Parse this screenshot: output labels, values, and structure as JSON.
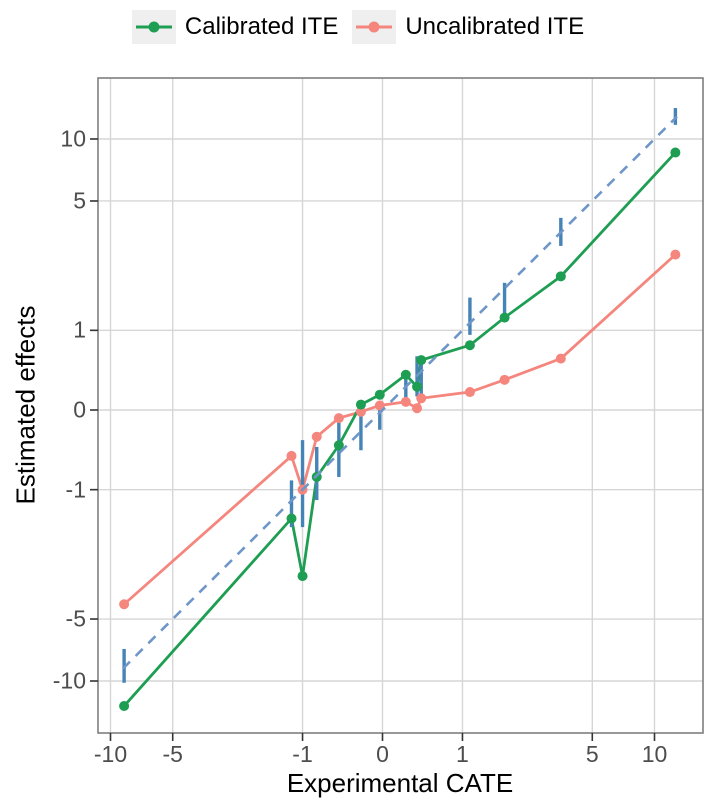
{
  "legend": {
    "items": [
      {
        "label": "Calibrated ITE",
        "color": "#1E9E52"
      },
      {
        "label": "Uncalibrated ITE",
        "color": "#F5867E"
      }
    ]
  },
  "chart_data": {
    "type": "line",
    "title": "",
    "xlabel": "Experimental CATE",
    "ylabel": "Estimated effects",
    "x_scale": "pseudo-log (asinh)",
    "y_scale": "pseudo-log (asinh)",
    "grid": "major-only",
    "legend_position": "top",
    "xlim": [
      -11.4,
      17.1
    ],
    "ylim": [
      -17.8,
      19.6
    ],
    "x_ticks": [
      -10,
      -5,
      -1,
      0,
      1,
      5,
      10
    ],
    "x_tick_labels": [
      "-10",
      "-5",
      "-1",
      "0",
      "1",
      "5",
      "10"
    ],
    "y_ticks": [
      10,
      5,
      1,
      0,
      -1,
      -5,
      -10
    ],
    "y_tick_labels": [
      "10",
      "5",
      "1",
      "0",
      "-1",
      "-5",
      "-10"
    ],
    "identity_line": {
      "style": "dashed",
      "color": "#6E96C8",
      "from": -8.72,
      "to": 12.82
    },
    "series": [
      {
        "name": "Calibrated ITE",
        "color": "#1E9E52",
        "x": [
          -8.6,
          -1.18,
          -1.0,
          -0.79,
          -0.5,
          -0.24,
          -0.03,
          0.26,
          0.39,
          0.44,
          1.12,
          1.79,
          3.5,
          12.6
        ],
        "y": [
          -13.2,
          -1.51,
          -3.06,
          -0.81,
          -0.4,
          0.06,
          0.17,
          0.4,
          0.26,
          0.58,
          0.78,
          1.21,
          2.08,
          8.6
        ]
      },
      {
        "name": "Uncalibrated ITE",
        "color": "#F5867E",
        "x": [
          -8.6,
          -1.18,
          -1.0,
          -0.79,
          -0.5,
          -0.24,
          -0.03,
          0.26,
          0.39,
          0.44,
          1.12,
          1.79,
          3.5,
          12.6
        ],
        "y": [
          -4.23,
          -0.53,
          -1.0,
          -0.3,
          -0.09,
          -0.02,
          0.05,
          0.09,
          0.02,
          0.13,
          0.2,
          0.34,
          0.6,
          2.7
        ]
      }
    ],
    "error_bars": {
      "color": "#4683B6",
      "x": [
        -8.6,
        -1.18,
        -1.0,
        -0.79,
        -0.5,
        -0.24,
        -0.03,
        0.26,
        0.39,
        0.44,
        1.12,
        1.79,
        3.5,
        12.6
      ],
      "low": [
        -10.2,
        -1.69,
        -1.69,
        -1.17,
        -0.81,
        -0.46,
        -0.22,
        0.11,
        0.15,
        0.15,
        0.93,
        1.25,
        2.99,
        11.7
      ],
      "high": [
        -7.0,
        -0.86,
        -0.34,
        -0.42,
        -0.14,
        -0.02,
        0.09,
        0.4,
        0.63,
        0.63,
        1.59,
        1.92,
        4.13,
        14.1
      ]
    },
    "panel_border_color": "#7f7f7f",
    "gridline_color": "#d6d6d6",
    "tick_mark_color": "#333333"
  }
}
